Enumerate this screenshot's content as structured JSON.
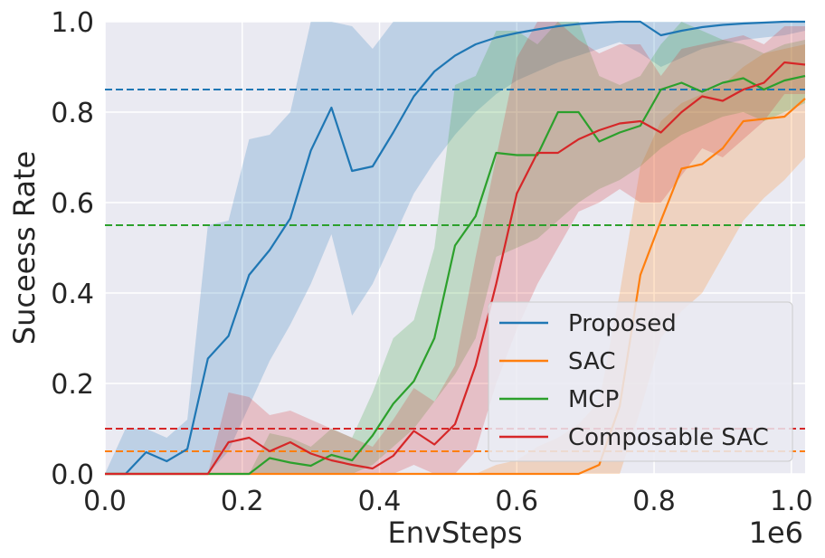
{
  "chart_data": {
    "type": "line",
    "xlabel": "EnvSteps",
    "ylabel": "Suceess Rate",
    "x_offset_label": "1e6",
    "xlim": [
      0.0,
      1.02
    ],
    "ylim": [
      0.0,
      1.0
    ],
    "xticks": [
      0.0,
      0.2,
      0.4,
      0.6,
      0.8,
      1.0
    ],
    "xtick_labels": [
      "0.0",
      "0.2",
      "0.4",
      "0.6",
      "0.8",
      "1.0"
    ],
    "yticks": [
      0.0,
      0.2,
      0.4,
      0.6,
      0.8,
      1.0
    ],
    "ytick_labels": [
      "0.0",
      "0.2",
      "0.4",
      "0.6",
      "0.8",
      "1.0"
    ],
    "grid": true,
    "legend_position": "lower-right",
    "series": [
      {
        "name": "Proposed",
        "color": "#1f77b4",
        "baseline": 0.85,
        "x": [
          0.0,
          0.03,
          0.06,
          0.09,
          0.12,
          0.15,
          0.18,
          0.21,
          0.24,
          0.27,
          0.3,
          0.33,
          0.36,
          0.39,
          0.42,
          0.45,
          0.48,
          0.51,
          0.54,
          0.57,
          0.6,
          0.63,
          0.66,
          0.69,
          0.72,
          0.75,
          0.78,
          0.81,
          0.84,
          0.87,
          0.9,
          0.93,
          0.96,
          0.99,
          1.02
        ],
        "values": [
          0.0,
          0.0,
          0.048,
          0.028,
          0.055,
          0.255,
          0.305,
          0.44,
          0.495,
          0.565,
          0.715,
          0.81,
          0.67,
          0.68,
          0.755,
          0.835,
          0.89,
          0.925,
          0.95,
          0.965,
          0.975,
          0.983,
          0.99,
          0.995,
          0.998,
          1.0,
          1.0,
          0.97,
          0.98,
          0.988,
          0.993,
          0.996,
          0.998,
          1.0,
          1.0
        ],
        "lower": [
          0.0,
          0.0,
          0.0,
          0.0,
          0.0,
          0.0,
          0.05,
          0.15,
          0.25,
          0.33,
          0.42,
          0.53,
          0.35,
          0.42,
          0.52,
          0.62,
          0.69,
          0.75,
          0.8,
          0.84,
          0.87,
          0.89,
          0.91,
          0.925,
          0.94,
          0.955,
          0.93,
          0.9,
          0.92,
          0.94,
          0.95,
          0.96,
          0.965,
          0.97,
          0.98
        ],
        "upper": [
          0.0,
          0.1,
          0.1,
          0.08,
          0.12,
          0.55,
          0.56,
          0.74,
          0.75,
          0.8,
          1.0,
          1.0,
          0.99,
          0.94,
          1.0,
          1.0,
          1.0,
          1.0,
          1.0,
          1.0,
          1.0,
          1.0,
          1.0,
          1.0,
          1.0,
          1.0,
          1.0,
          1.0,
          1.0,
          1.0,
          1.0,
          1.0,
          1.0,
          1.0,
          1.0
        ]
      },
      {
        "name": "SAC",
        "color": "#ff7f0e",
        "baseline": 0.05,
        "x": [
          0.0,
          0.03,
          0.06,
          0.09,
          0.12,
          0.15,
          0.18,
          0.21,
          0.24,
          0.27,
          0.3,
          0.33,
          0.36,
          0.39,
          0.42,
          0.45,
          0.48,
          0.51,
          0.54,
          0.57,
          0.6,
          0.63,
          0.66,
          0.69,
          0.72,
          0.75,
          0.78,
          0.81,
          0.84,
          0.87,
          0.9,
          0.93,
          0.96,
          0.99,
          1.02
        ],
        "values": [
          0.0,
          0.0,
          0.0,
          0.0,
          0.0,
          0.0,
          0.0,
          0.0,
          0.0,
          0.0,
          0.0,
          0.0,
          0.0,
          0.0,
          0.0,
          0.0,
          0.0,
          0.0,
          0.0,
          0.0,
          0.0,
          0.0,
          0.0,
          0.0,
          0.02,
          0.15,
          0.44,
          0.56,
          0.675,
          0.685,
          0.72,
          0.78,
          0.785,
          0.79,
          0.83
        ],
        "lower": [
          0.0,
          0.0,
          0.0,
          0.0,
          0.0,
          0.0,
          0.0,
          0.0,
          0.0,
          0.0,
          0.0,
          0.0,
          0.0,
          0.0,
          0.0,
          0.0,
          0.0,
          0.0,
          0.0,
          0.0,
          0.0,
          0.0,
          0.0,
          0.0,
          0.0,
          0.0,
          0.14,
          0.3,
          0.36,
          0.4,
          0.48,
          0.56,
          0.61,
          0.65,
          0.7
        ],
        "upper": [
          0.0,
          0.0,
          0.0,
          0.0,
          0.0,
          0.0,
          0.0,
          0.0,
          0.0,
          0.0,
          0.0,
          0.0,
          0.0,
          0.0,
          0.0,
          0.0,
          0.0,
          0.0,
          0.0,
          0.02,
          0.03,
          0.06,
          0.08,
          0.11,
          0.16,
          0.4,
          0.68,
          0.78,
          0.82,
          0.84,
          0.86,
          0.9,
          0.93,
          0.94,
          0.95
        ]
      },
      {
        "name": "MCP",
        "color": "#2ca02c",
        "baseline": 0.55,
        "x": [
          0.0,
          0.03,
          0.06,
          0.09,
          0.12,
          0.15,
          0.18,
          0.21,
          0.24,
          0.27,
          0.3,
          0.33,
          0.36,
          0.39,
          0.42,
          0.45,
          0.48,
          0.51,
          0.54,
          0.57,
          0.6,
          0.63,
          0.66,
          0.69,
          0.72,
          0.75,
          0.78,
          0.81,
          0.84,
          0.87,
          0.9,
          0.93,
          0.96,
          0.99,
          1.02
        ],
        "values": [
          0.0,
          0.0,
          0.0,
          0.0,
          0.0,
          0.0,
          0.0,
          0.0,
          0.035,
          0.025,
          0.018,
          0.042,
          0.03,
          0.085,
          0.155,
          0.205,
          0.3,
          0.505,
          0.57,
          0.71,
          0.705,
          0.705,
          0.8,
          0.8,
          0.735,
          0.755,
          0.77,
          0.85,
          0.865,
          0.845,
          0.865,
          0.875,
          0.85,
          0.87,
          0.88
        ],
        "lower": [
          0.0,
          0.0,
          0.0,
          0.0,
          0.0,
          0.0,
          0.0,
          0.0,
          0.0,
          0.0,
          0.0,
          0.0,
          0.0,
          0.02,
          0.06,
          0.1,
          0.16,
          0.22,
          0.3,
          0.48,
          0.5,
          0.52,
          0.56,
          0.6,
          0.63,
          0.65,
          0.68,
          0.72,
          0.75,
          0.77,
          0.79,
          0.8,
          0.78,
          0.8,
          0.82
        ],
        "upper": [
          0.0,
          0.0,
          0.0,
          0.0,
          0.0,
          0.0,
          0.0,
          0.0,
          0.09,
          0.08,
          0.06,
          0.1,
          0.08,
          0.18,
          0.3,
          0.34,
          0.5,
          0.86,
          0.88,
          0.98,
          0.98,
          0.95,
          1.0,
          1.0,
          0.88,
          0.86,
          0.88,
          0.95,
          1.0,
          0.98,
          0.96,
          0.95,
          0.93,
          0.95,
          0.96
        ]
      },
      {
        "name": "Composable SAC",
        "color": "#d62728",
        "baseline": 0.1,
        "x": [
          0.0,
          0.03,
          0.06,
          0.09,
          0.12,
          0.15,
          0.18,
          0.21,
          0.24,
          0.27,
          0.3,
          0.33,
          0.36,
          0.39,
          0.42,
          0.45,
          0.48,
          0.51,
          0.54,
          0.57,
          0.6,
          0.63,
          0.66,
          0.69,
          0.72,
          0.75,
          0.78,
          0.81,
          0.84,
          0.87,
          0.9,
          0.93,
          0.96,
          0.99,
          1.02
        ],
        "values": [
          0.0,
          0.0,
          0.0,
          0.0,
          0.0,
          0.0,
          0.07,
          0.08,
          0.05,
          0.07,
          0.045,
          0.03,
          0.02,
          0.012,
          0.04,
          0.095,
          0.065,
          0.11,
          0.24,
          0.42,
          0.62,
          0.71,
          0.71,
          0.74,
          0.76,
          0.775,
          0.78,
          0.755,
          0.8,
          0.835,
          0.825,
          0.85,
          0.865,
          0.91,
          0.905
        ],
        "lower": [
          0.0,
          0.0,
          0.0,
          0.0,
          0.0,
          0.0,
          0.0,
          0.0,
          0.0,
          0.0,
          0.0,
          0.0,
          0.0,
          0.0,
          0.0,
          0.02,
          0.0,
          0.0,
          0.05,
          0.2,
          0.32,
          0.42,
          0.5,
          0.58,
          0.6,
          0.63,
          0.6,
          0.6,
          0.66,
          0.72,
          0.7,
          0.74,
          0.78,
          0.84,
          0.84
        ],
        "upper": [
          0.0,
          0.0,
          0.0,
          0.0,
          0.0,
          0.0,
          0.18,
          0.17,
          0.13,
          0.14,
          0.12,
          0.1,
          0.08,
          0.06,
          0.12,
          0.19,
          0.16,
          0.24,
          0.48,
          0.7,
          0.92,
          1.0,
          1.0,
          0.96,
          0.93,
          0.95,
          0.95,
          0.88,
          0.94,
          0.95,
          0.96,
          0.97,
          0.95,
          0.99,
          0.99
        ]
      }
    ]
  }
}
